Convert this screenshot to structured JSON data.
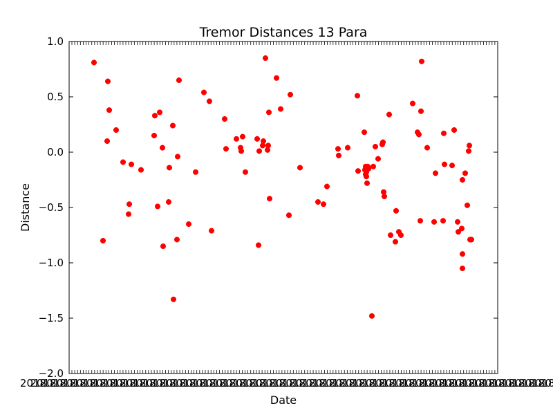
{
  "chart_data": {
    "type": "scatter",
    "title": "Tremor Distances 13 Para",
    "xlabel": "Date",
    "ylabel": "Distance",
    "ylim": [
      -2.0,
      1.0
    ],
    "yticks": [
      "1.0",
      "0.5",
      "0.0",
      "−0.5",
      "−1.0",
      "−1.5",
      "−2.0"
    ],
    "ytick_values": [
      1.0,
      0.5,
      0.0,
      -0.5,
      -1.0,
      -1.5,
      -2.0
    ],
    "xtick_labels_note_visible": "2018",
    "grid": false,
    "marker_color": "#ff0000",
    "series": [
      {
        "x": [
          36,
          49,
          55,
          56,
          58,
          68,
          78,
          86,
          87,
          90,
          104,
          123,
          124,
          128,
          131,
          135,
          136,
          144,
          145,
          150,
          151,
          156,
          157,
          159,
          173,
          183,
          195,
          203,
          206,
          225,
          227,
          242,
          248,
          249,
          251,
          255,
          272,
          274,
          275,
          280,
          281,
          284,
          287,
          288,
          289,
          290,
          300,
          306,
          318,
          320,
          334,
          360,
          368,
          373,
          389,
          390,
          403,
          417,
          418,
          427,
          428,
          429,
          429,
          430,
          430,
          431,
          431,
          432,
          433,
          438,
          440,
          443,
          447,
          453,
          454,
          455,
          456,
          463,
          465,
          472,
          473,
          477,
          480,
          497,
          504,
          506,
          508,
          509,
          510,
          518,
          528,
          530,
          541,
          542,
          543,
          554,
          557,
          562,
          563,
          568,
          569,
          569,
          569,
          573,
          576,
          578,
          579,
          580,
          581,
          582
        ],
        "y": [
          0.81,
          -0.8,
          0.1,
          0.64,
          0.38,
          0.2,
          -0.09,
          -0.56,
          -0.47,
          -0.11,
          -0.16,
          0.15,
          0.33,
          -0.49,
          0.36,
          0.04,
          -0.85,
          -0.45,
          -0.14,
          0.24,
          -1.33,
          -0.79,
          -0.04,
          0.65,
          -0.65,
          -0.18,
          0.54,
          0.46,
          -0.71,
          0.3,
          0.03,
          0.12,
          0.04,
          0.01,
          0.14,
          -0.18,
          0.12,
          -0.84,
          0.01,
          0.06,
          0.1,
          0.85,
          0.02,
          0.06,
          0.36,
          -0.42,
          0.67,
          0.39,
          -0.57,
          0.52,
          -0.14,
          -0.45,
          -0.47,
          -0.31,
          0.03,
          -0.03,
          0.04,
          0.51,
          -0.17,
          0.18,
          -0.16,
          -0.2,
          -0.13,
          -0.22,
          -0.18,
          -0.15,
          -0.28,
          -0.13,
          -0.15,
          -1.48,
          -0.13,
          0.05,
          -0.06,
          0.07,
          0.09,
          -0.36,
          -0.4,
          0.34,
          -0.75,
          -0.81,
          -0.53,
          -0.72,
          -0.75,
          0.44,
          0.18,
          0.16,
          -0.62,
          0.37,
          0.82,
          0.04,
          -0.63,
          -0.19,
          -0.62,
          0.17,
          -0.11,
          -0.12,
          0.2,
          -0.63,
          -0.72,
          -0.69,
          -0.92,
          -1.05,
          -0.25,
          -0.19,
          -0.48,
          0.01,
          0.06,
          -0.79,
          -0.79,
          -0.79
        ]
      }
    ]
  }
}
